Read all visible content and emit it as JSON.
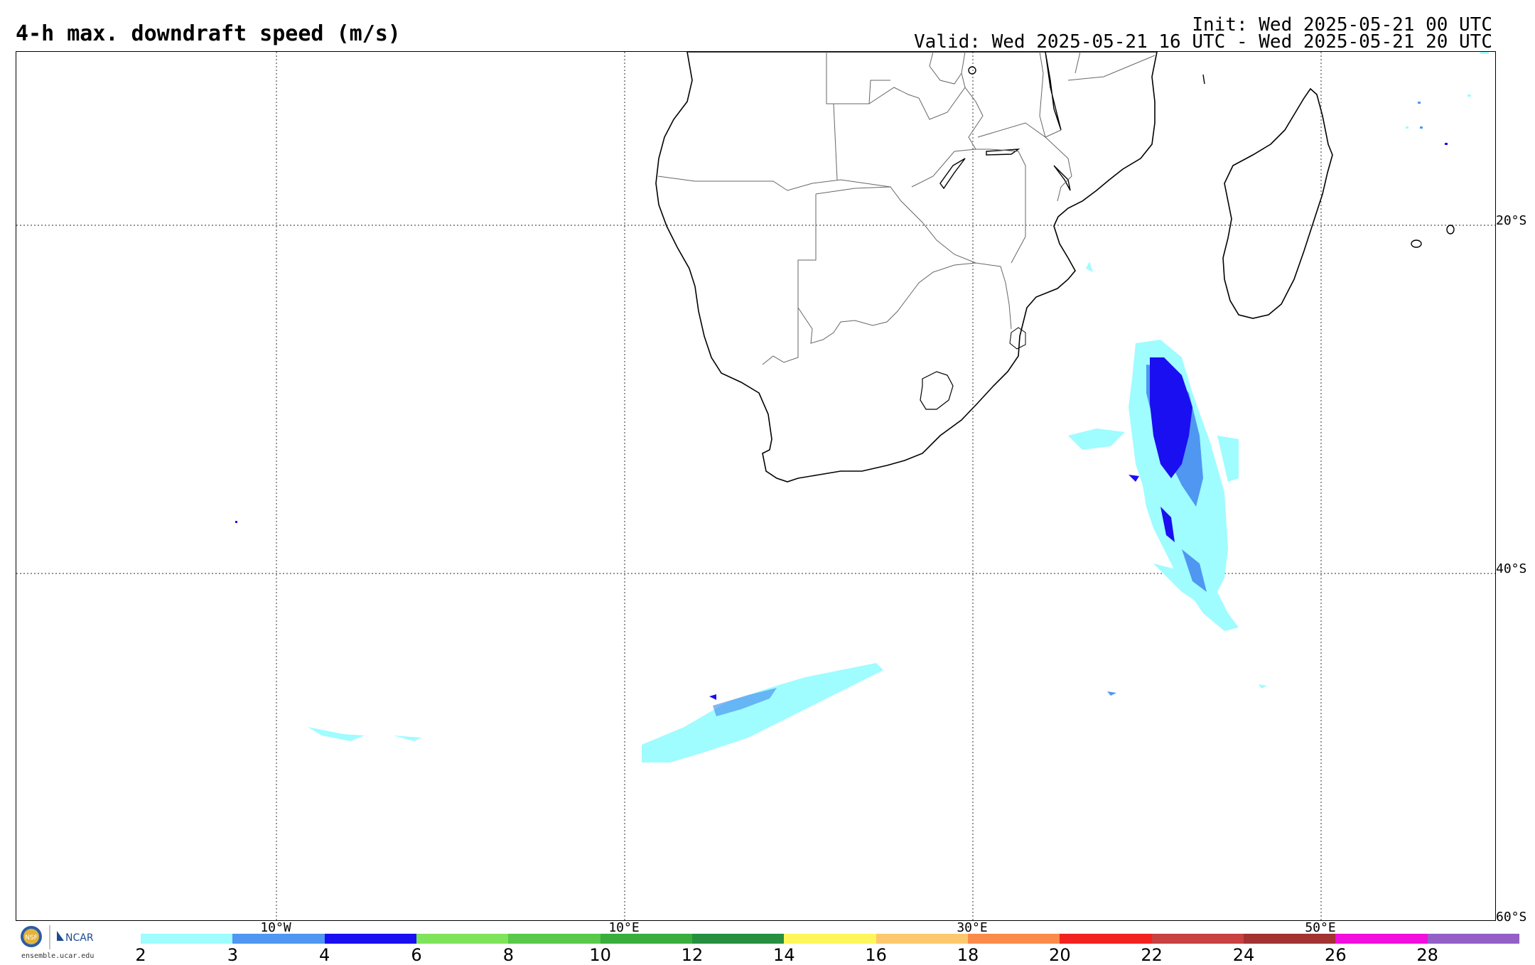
{
  "header": {
    "title": "4-h max. downdraft speed (m/s)",
    "init": "Init: Wed 2025-05-21 00 UTC",
    "valid": "Valid: Wed 2025-05-21 16 UTC - Wed 2025-05-21 20 UTC"
  },
  "map": {
    "lat_labels": [
      "20°S",
      "40°S",
      "60°S"
    ],
    "lon_labels": [
      "10°W",
      "10°E",
      "30°E",
      "50°E"
    ]
  },
  "colorbar": {
    "ticks": [
      "2",
      "3",
      "4",
      "6",
      "8",
      "10",
      "12",
      "14",
      "16",
      "18",
      "20",
      "22",
      "24",
      "26",
      "28"
    ],
    "colors": [
      "#9ffcff",
      "#4f97f1",
      "#1a0ff0",
      "#7ee45a",
      "#58c94a",
      "#3aae3d",
      "#269040",
      "#fef65a",
      "#fdc86d",
      "#fb8b4b",
      "#f2221e",
      "#c94141",
      "#a33232",
      "#f20edd",
      "#9460c8"
    ]
  },
  "logo": {
    "org1": "NSF",
    "org2": "NCAR",
    "url": "ensemble.ucar.edu"
  }
}
